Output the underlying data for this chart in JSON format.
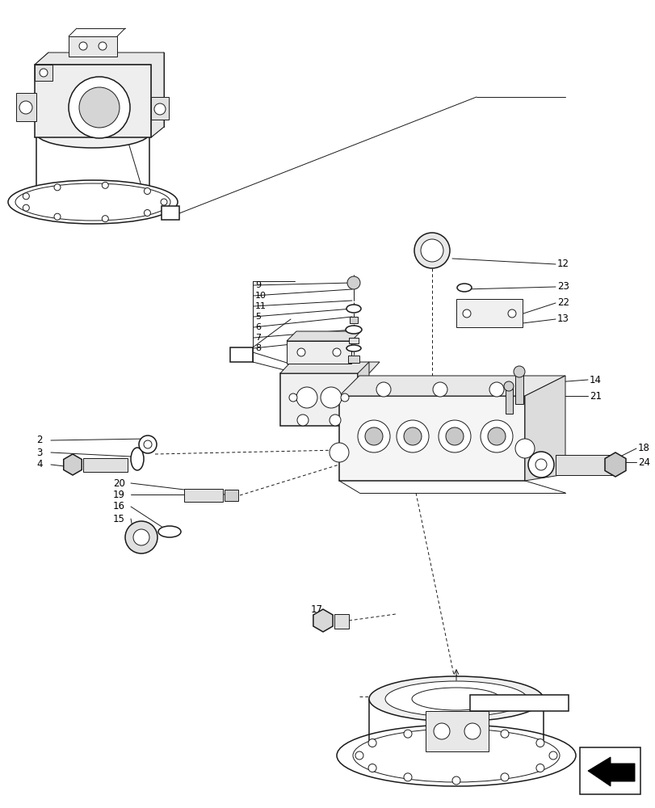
{
  "bg_color": "#ffffff",
  "lc": "#1a1a1a",
  "fig_w": 8.12,
  "fig_h": 10.0,
  "dpi": 100
}
